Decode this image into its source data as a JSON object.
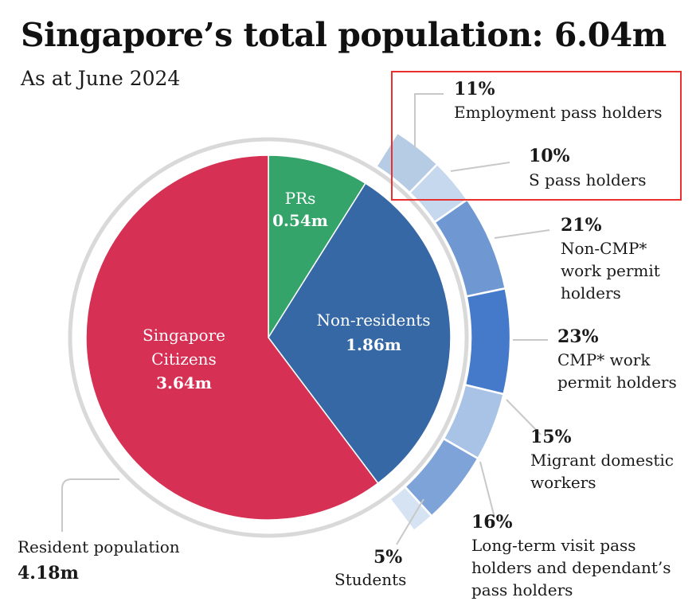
{
  "header": {
    "title": "Singapore’s total population: 6.04m",
    "subtitle": "As at June 2024"
  },
  "colors": {
    "citizens": "#d63054",
    "prs": "#35a46a",
    "non_residents": "#3668a6",
    "ring_track": "#d9d9d9",
    "highlight_box": "#e8312f",
    "leader_line": "#c8c8c8"
  },
  "chart_data": {
    "type": "pie",
    "title": "Singapore’s total population: 6.04m",
    "subtitle": "As at June 2024",
    "total": 6.04,
    "unit": "m",
    "slices": [
      {
        "name": "PRs",
        "value": 0.54,
        "label": "PRs",
        "value_label": "0.54m",
        "color": "#35a46a"
      },
      {
        "name": "Non-residents",
        "value": 1.86,
        "label": "Non-residents",
        "value_label": "1.86m",
        "color": "#3668a6"
      },
      {
        "name": "Singapore Citizens",
        "value": 3.64,
        "label_lines": [
          "Singapore",
          "Citizens"
        ],
        "value_label": "3.64m",
        "color": "#d63054"
      }
    ],
    "resident_population": {
      "label": "Resident population",
      "value": 4.18,
      "value_label": "4.18m"
    },
    "non_resident_breakdown": [
      {
        "pct": 11,
        "pct_label": "11%",
        "lines": [
          "Employment pass holders"
        ],
        "color": "#b6cce4"
      },
      {
        "pct": 10,
        "pct_label": "10%",
        "lines": [
          "S pass holders"
        ],
        "color": "#c5d8ee"
      },
      {
        "pct": 21,
        "pct_label": "21%",
        "lines": [
          "Non-CMP*",
          "work permit",
          "holders"
        ],
        "color": "#6f98d3"
      },
      {
        "pct": 23,
        "pct_label": "23%",
        "lines": [
          "CMP* work",
          "permit holders"
        ],
        "color": "#4579c9"
      },
      {
        "pct": 15,
        "pct_label": "15%",
        "lines": [
          "Migrant domestic",
          "workers"
        ],
        "color": "#a9c3e6"
      },
      {
        "pct": 16,
        "pct_label": "16%",
        "lines": [
          "Long-term visit pass",
          "holders and dependant’s",
          "pass holders"
        ],
        "color": "#7ea3d9"
      },
      {
        "pct": 5,
        "pct_label": "5%",
        "lines": [
          "Students"
        ],
        "color": "#d6e3f3"
      }
    ]
  }
}
